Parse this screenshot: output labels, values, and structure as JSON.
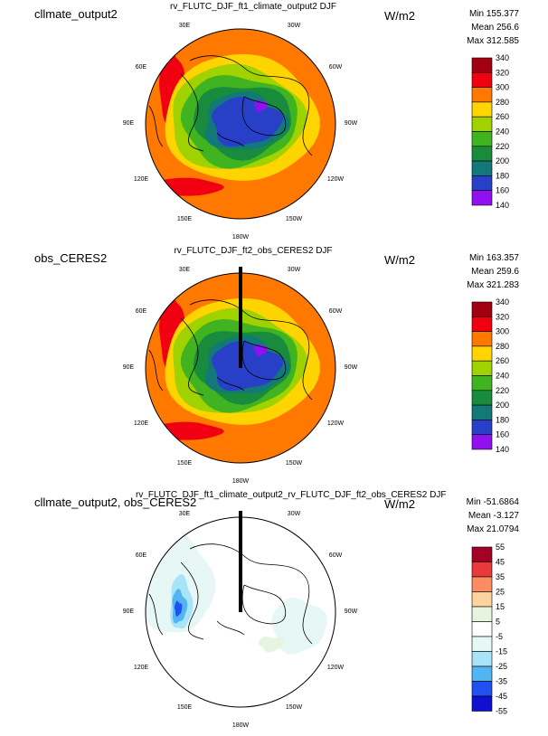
{
  "lon_labels": [
    "30E",
    "30W",
    "60E",
    "60W",
    "90E",
    "90W",
    "120E",
    "120W",
    "150E",
    "150W",
    "180W"
  ],
  "panels": [
    {
      "case_label": "cllmate_output2",
      "title": "rv_FLUTC_DJF_ft1_climate_output2  DJF",
      "units": "W/m2",
      "stats": {
        "min": "Min 155.377",
        "mean": "Mean 256.6",
        "max": "Max 312.585"
      },
      "colorbar": {
        "labels": [
          "340",
          "320",
          "300",
          "280",
          "260",
          "240",
          "220",
          "200",
          "180",
          "160",
          "140"
        ],
        "colors": [
          "#a00010",
          "#f00010",
          "#ff7800",
          "#ffd400",
          "#a0d200",
          "#40b420",
          "#188c3c",
          "#127878",
          "#2840c8",
          "#9010f0"
        ]
      }
    },
    {
      "case_label": "obs_CERES2",
      "title": "rv_FLUTC_DJF_ft2_obs_CERES2  DJF",
      "units": "W/m2",
      "stats": {
        "min": "Min 163.357",
        "mean": "Mean 259.6",
        "max": "Max 321.283"
      },
      "colorbar": {
        "labels": [
          "340",
          "320",
          "300",
          "280",
          "260",
          "240",
          "220",
          "200",
          "180",
          "160",
          "140"
        ],
        "colors": [
          "#a00010",
          "#f00010",
          "#ff7800",
          "#ffd400",
          "#a0d200",
          "#40b420",
          "#188c3c",
          "#127878",
          "#2840c8",
          "#9010f0"
        ]
      }
    },
    {
      "case_label": "cllmate_output2, obs_CERES2",
      "title": "rv_FLUTC_DJF_ft1_climate_output2_rv_FLUTC_DJF_ft2_obs_CERES2  DJF",
      "units": "W/m2",
      "stats": {
        "min": "Min -51.6864",
        "mean": "Mean -3.127",
        "max": "Max 21.0794"
      },
      "colorbar": {
        "labels": [
          "55",
          "45",
          "35",
          "25",
          "15",
          "5",
          "-5",
          "-15",
          "-25",
          "-35",
          "-45",
          "-55"
        ],
        "colors": [
          "#a50026",
          "#e83a3a",
          "#fc8d62",
          "#fdd49e",
          "#e5f5e0",
          "#ffffff",
          "#e6f7f5",
          "#a8e4f8",
          "#52b4f0",
          "#2050f0",
          "#1010d0"
        ]
      }
    }
  ]
}
